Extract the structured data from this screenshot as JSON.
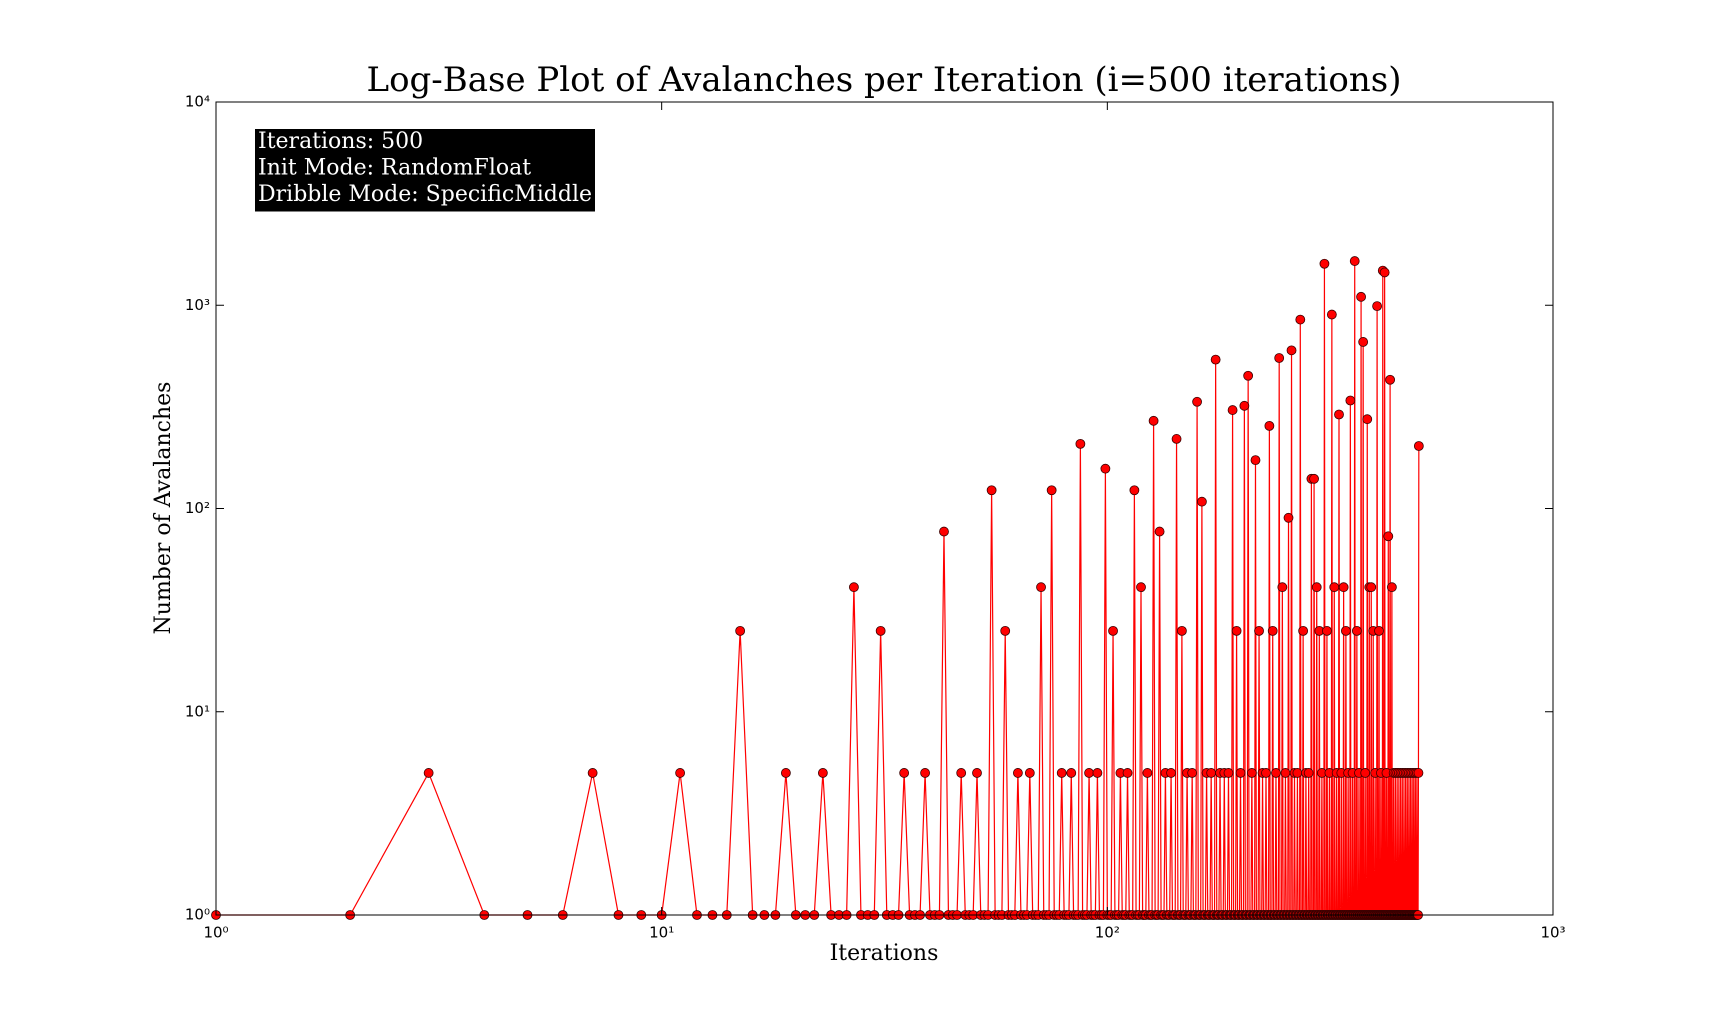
{
  "chart_data": {
    "type": "line",
    "title": "Log-Base Plot of Avalanches per Iteration (i=500 iterations)",
    "xlabel": "Iterations",
    "ylabel": "Number of Avalanches",
    "annotation": [
      "Iterations: 500",
      "Init Mode: RandomFloat",
      "Dribble Mode: SpecificMiddle"
    ],
    "xscale": "log",
    "yscale": "log",
    "xlim": [
      1,
      1000
    ],
    "ylim": [
      1,
      10000
    ],
    "xticks": [
      {
        "value": 1,
        "label": "10⁰"
      },
      {
        "value": 10,
        "label": "10¹"
      },
      {
        "value": 100,
        "label": "10²"
      },
      {
        "value": 1000,
        "label": "10³"
      }
    ],
    "yticks": [
      {
        "value": 1,
        "label": "10⁰"
      },
      {
        "value": 10,
        "label": "10¹"
      },
      {
        "value": 100,
        "label": "10²"
      },
      {
        "value": 1000,
        "label": "10³"
      },
      {
        "value": 10000,
        "label": "10⁴"
      }
    ],
    "x": [
      1,
      2,
      3,
      4,
      5,
      6,
      7,
      8,
      9,
      10,
      11,
      12,
      13,
      14,
      15,
      16,
      17,
      18,
      19,
      20,
      21,
      22,
      23,
      24,
      25,
      26,
      27,
      28,
      29,
      30,
      31,
      32,
      33,
      34,
      35,
      36,
      37,
      38,
      39,
      40,
      41,
      42,
      43,
      44,
      45,
      46,
      47,
      48,
      49,
      50,
      51,
      52,
      53,
      54,
      55,
      56,
      57,
      58,
      59,
      60,
      61,
      62,
      63,
      64,
      65,
      66,
      67,
      68,
      69,
      70,
      71,
      72,
      73,
      74,
      75,
      76,
      77,
      78,
      79,
      80,
      81,
      82,
      83,
      84,
      85,
      86,
      87,
      88,
      89,
      90,
      91,
      92,
      93,
      94,
      95,
      96,
      97,
      98,
      99,
      100,
      101,
      102,
      103,
      104,
      105,
      106,
      107,
      108,
      109,
      110,
      111,
      112,
      113,
      114,
      115,
      116,
      117,
      118,
      119,
      120,
      121,
      122,
      123,
      124,
      125,
      126,
      127,
      128,
      129,
      130,
      131,
      132,
      133,
      134,
      135,
      136,
      137,
      138,
      139,
      140,
      141,
      142,
      143,
      144,
      145,
      146,
      147,
      148,
      149,
      150,
      151,
      152,
      153,
      154,
      155,
      156,
      157,
      158,
      159,
      160,
      161,
      162,
      163,
      164,
      165,
      166,
      167,
      168,
      169,
      170,
      171,
      172,
      173,
      174,
      175,
      176,
      177,
      178,
      179,
      180,
      181,
      182,
      183,
      184,
      185,
      186,
      187,
      188,
      189,
      190,
      191,
      192,
      193,
      194,
      195,
      196,
      197,
      198,
      199,
      200,
      201,
      202,
      203,
      204,
      205,
      206,
      207,
      208,
      209,
      210,
      211,
      212,
      213,
      214,
      215,
      216,
      217,
      218,
      219,
      220,
      221,
      222,
      223,
      224,
      225,
      226,
      227,
      228,
      229,
      230,
      231,
      232,
      233,
      234,
      235,
      236,
      237,
      238,
      239,
      240,
      241,
      242,
      243,
      244,
      245,
      246,
      247,
      248,
      249,
      250,
      251,
      252,
      253,
      254,
      255,
      256,
      257,
      258,
      259,
      260,
      261,
      262,
      263,
      264,
      265,
      266,
      267,
      268,
      269,
      270,
      271,
      272,
      273,
      274,
      275,
      276,
      277,
      278,
      279,
      280,
      281,
      282,
      283,
      284,
      285,
      286,
      287,
      288,
      289,
      290,
      291,
      292,
      293,
      294,
      295,
      296,
      297,
      298,
      299,
      300,
      301,
      302,
      303,
      304,
      305,
      306,
      307,
      308,
      309,
      310,
      311,
      312,
      313,
      314,
      315,
      316,
      317,
      318,
      319,
      320,
      321,
      322,
      323,
      324,
      325,
      326,
      327,
      328,
      329,
      330,
      331,
      332,
      333,
      334,
      335,
      336,
      337,
      338,
      339,
      340,
      341,
      342,
      343,
      344,
      345,
      346,
      347,
      348,
      349,
      350,
      351,
      352,
      353,
      354,
      355,
      356,
      357,
      358,
      359,
      360,
      361,
      362,
      363,
      364,
      365,
      366,
      367,
      368,
      369,
      370,
      371,
      372,
      373,
      374,
      375,
      376,
      377,
      378,
      379,
      380,
      381,
      382,
      383,
      384,
      385,
      386,
      387,
      388,
      389,
      390,
      391,
      392,
      393,
      394,
      395,
      396,
      397,
      398,
      399,
      400,
      401,
      402,
      403,
      404,
      405,
      406,
      407,
      408,
      409,
      410,
      411,
      412,
      413,
      414,
      415,
      416,
      417,
      418,
      419,
      420,
      421,
      422,
      423,
      424,
      425,
      426,
      427,
      428,
      429,
      430,
      431,
      432,
      433,
      434,
      435,
      436,
      437,
      438,
      439,
      440,
      441,
      442,
      443,
      444,
      445,
      446,
      447,
      448,
      449,
      450,
      451,
      452,
      453,
      454,
      455,
      456,
      457,
      458,
      459,
      460,
      461,
      462,
      463,
      464,
      465,
      466,
      467,
      468,
      469,
      470,
      471,
      472,
      473,
      474,
      475,
      476,
      477,
      478,
      479,
      480,
      481,
      482,
      483,
      484,
      485,
      486,
      487,
      488,
      489,
      490,
      491,
      492,
      493,
      494,
      495,
      496,
      497,
      498,
      499,
      500
    ],
    "series": [
      {
        "color": "#ff0000",
        "marker_edge": "#3a0000",
        "values": [
          1,
          1,
          5,
          1,
          1,
          1,
          5,
          1,
          1,
          1,
          5,
          1,
          1,
          1,
          25,
          1,
          1,
          1,
          5,
          1,
          1,
          1,
          5,
          1,
          1,
          1,
          41,
          1,
          1,
          1,
          25,
          1,
          1,
          1,
          5,
          1,
          1,
          1,
          5,
          1,
          1,
          1,
          77,
          1,
          1,
          1,
          5,
          1,
          1,
          1,
          5,
          1,
          1,
          1,
          123,
          1,
          1,
          1,
          25,
          1,
          1,
          1,
          5,
          1,
          1,
          1,
          5,
          1,
          1,
          1,
          41,
          1,
          1,
          1,
          123,
          1,
          1,
          1,
          5,
          1,
          1,
          1,
          5,
          1,
          1,
          1,
          208,
          1,
          1,
          1,
          5,
          1,
          1,
          1,
          5,
          1,
          1,
          1,
          157,
          1,
          1,
          1,
          25,
          1,
          1,
          1,
          5,
          1,
          1,
          1,
          5,
          1,
          1,
          1,
          123,
          1,
          1,
          1,
          41,
          1,
          1,
          1,
          5,
          1,
          1,
          1,
          270,
          1,
          1,
          1,
          77,
          1,
          1,
          1,
          5,
          1,
          1,
          1,
          5,
          1,
          1,
          1,
          220,
          1,
          1,
          1,
          25,
          1,
          1,
          1,
          5,
          1,
          1,
          1,
          5,
          1,
          1,
          1,
          335,
          1,
          1,
          1,
          108,
          1,
          1,
          1,
          5,
          1,
          1,
          1,
          5,
          1,
          1,
          1,
          540,
          1,
          1,
          1,
          5,
          1,
          1,
          1,
          5,
          1,
          1,
          1,
          5,
          1,
          1,
          1,
          305,
          1,
          1,
          1,
          25,
          1,
          1,
          1,
          5,
          1,
          1,
          1,
          320,
          1,
          1,
          1,
          450,
          1,
          1,
          1,
          5,
          1,
          1,
          1,
          173,
          1,
          1,
          1,
          25,
          1,
          1,
          1,
          5,
          1,
          1,
          1,
          5,
          1,
          1,
          1,
          255,
          1,
          1,
          1,
          25,
          1,
          1,
          1,
          5,
          1,
          1,
          1,
          550,
          1,
          1,
          1,
          41,
          1,
          1,
          1,
          5,
          1,
          1,
          1,
          90,
          1,
          1,
          1,
          600,
          1,
          1,
          1,
          5,
          1,
          1,
          1,
          5,
          1,
          1,
          1,
          850,
          1,
          1,
          1,
          25,
          1,
          1,
          1,
          5,
          1,
          1,
          1,
          5,
          1,
          1,
          1,
          140,
          1,
          1,
          1,
          140,
          1,
          1,
          1,
          41,
          1,
          1,
          1,
          25,
          1,
          1,
          1,
          5,
          1,
          1,
          1,
          1600,
          1,
          1,
          1,
          25,
          1,
          1,
          1,
          5,
          1,
          1,
          1,
          900,
          1,
          1,
          1,
          41,
          1,
          1,
          1,
          5,
          1,
          1,
          1,
          290,
          1,
          1,
          1,
          5,
          1,
          1,
          1,
          41,
          1,
          1,
          1,
          25,
          1,
          1,
          1,
          5,
          1,
          1,
          1,
          340,
          1,
          1,
          1,
          5,
          1,
          1,
          1,
          1650,
          1,
          1,
          1,
          25,
          1,
          1,
          1,
          5,
          1,
          1,
          1,
          1100,
          1,
          1,
          1,
          660,
          1,
          1,
          1,
          5,
          1,
          1,
          1,
          275,
          1,
          1,
          1,
          41,
          1,
          1,
          1,
          41,
          1,
          1,
          1,
          25,
          1,
          1,
          1,
          5,
          1,
          1,
          1,
          990,
          1,
          1,
          1,
          25,
          1,
          1,
          1,
          5,
          1,
          1,
          1,
          1480,
          1,
          1,
          1,
          1450,
          1,
          1,
          1,
          5,
          1,
          1,
          1,
          73,
          1,
          1,
          1,
          430,
          1,
          1,
          1,
          41,
          1,
          1,
          1,
          5,
          1,
          1,
          1,
          5,
          1,
          1,
          1,
          5,
          1,
          1,
          1,
          5,
          1,
          1,
          1,
          5,
          1,
          1,
          1,
          5,
          1,
          1,
          1,
          5,
          1,
          1,
          1,
          5,
          1,
          1,
          1,
          5,
          1,
          1,
          1,
          5,
          1,
          1,
          1,
          5,
          1,
          1,
          1,
          5,
          1,
          1,
          1,
          5,
          1,
          1,
          1,
          5,
          1,
          1,
          1,
          5,
          1,
          1,
          1,
          5,
          203
        ]
      }
    ]
  }
}
